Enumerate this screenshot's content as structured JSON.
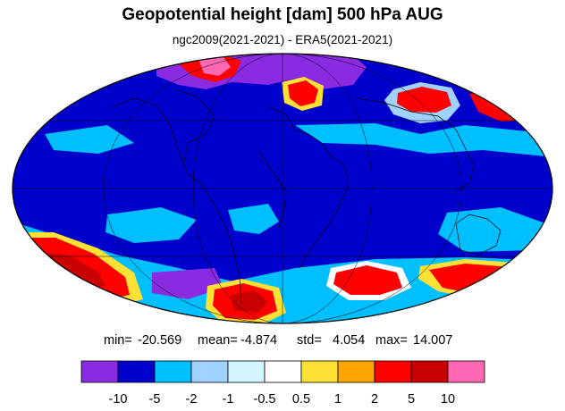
{
  "title": "Geopotential height [dam] 500 hPa AUG",
  "subtitle": "ngc2009(2021-2021) - ERA5(2021-2021)",
  "stats": {
    "min_label": "min=",
    "min": "-20.569",
    "mean_label": "mean=",
    "mean": "-4.874",
    "std_label": "std=",
    "std": "4.054",
    "max_label": "max=",
    "max": "14.007"
  },
  "colorbar": {
    "colors": [
      "#8a2be2",
      "#0000cd",
      "#00bfff",
      "#a0d2ff",
      "#d2f5ff",
      "#ffffff",
      "#ffe135",
      "#ffa500",
      "#ff0000",
      "#c80000",
      "#ff69b4"
    ],
    "tick_labels": [
      "-10",
      "-5",
      "-2",
      "-1",
      "-0.5",
      "0.5",
      "1",
      "2",
      "5",
      "10"
    ]
  },
  "map_colors": {
    "background": "#0000cd",
    "grid": "#000000",
    "coast": "#000000"
  }
}
